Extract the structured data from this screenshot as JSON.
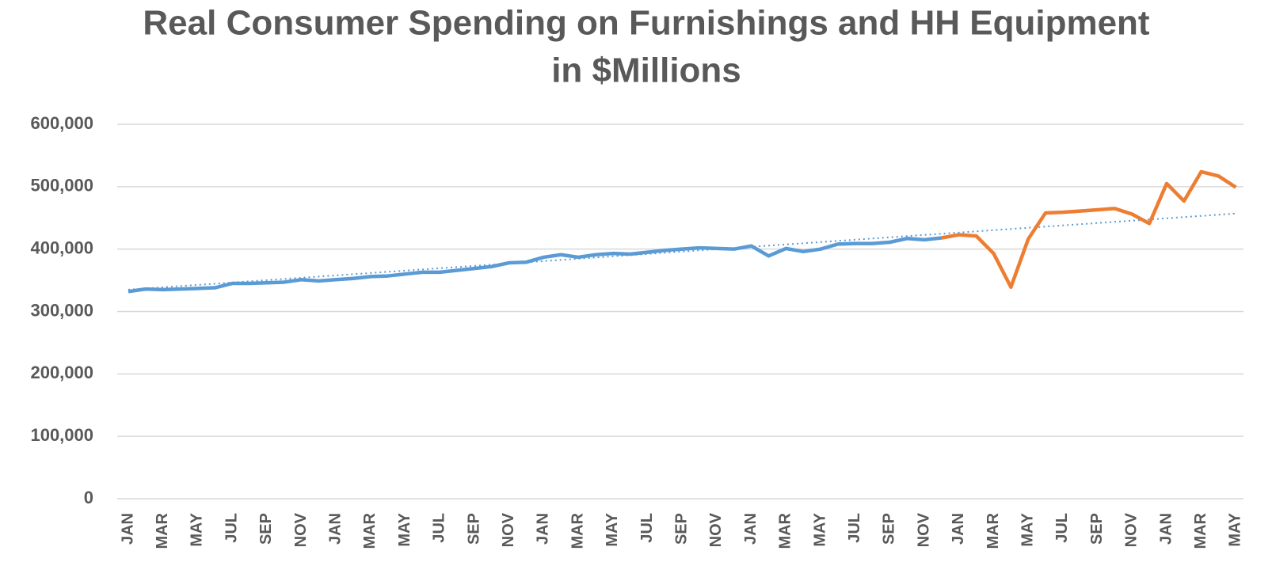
{
  "chart_data": {
    "type": "line",
    "title": [
      "Real Consumer Spending on Furnishings and HH Equipment",
      "in $Millions"
    ],
    "categories": [
      "JAN",
      null,
      "MAR",
      null,
      "MAY",
      null,
      "JUL",
      null,
      "SEP",
      null,
      "NOV",
      null,
      "JAN",
      null,
      "MAR",
      null,
      "MAY",
      null,
      "JUL",
      null,
      "SEP",
      null,
      "NOV",
      null,
      "JAN",
      null,
      "MAR",
      null,
      "MAY",
      null,
      "JUL",
      null,
      "SEP",
      null,
      "NOV",
      null,
      "JAN",
      null,
      "MAR",
      null,
      "MAY",
      null,
      "JUL",
      null,
      "SEP",
      null,
      "NOV",
      null,
      "JAN",
      null,
      "MAR",
      null,
      "MAY",
      null,
      "JUL",
      null,
      "SEP",
      null,
      "NOV",
      null,
      "JAN",
      null,
      "MAR",
      null,
      "MAY"
    ],
    "series": [
      {
        "color": "#5b9bd5",
        "values": [
          332000,
          336000,
          335000,
          336000,
          337000,
          338000,
          345000,
          345000,
          346000,
          347000,
          351000,
          349000,
          351000,
          353000,
          356000,
          357000,
          360000,
          363000,
          363000,
          366000,
          369000,
          372000,
          378000,
          379000,
          387000,
          391000,
          387000,
          391000,
          393000,
          392000,
          395000,
          398000,
          400000,
          402000,
          401000,
          400000,
          405000,
          389000,
          401000,
          396000,
          400000,
          408000,
          409000,
          409000,
          411000,
          417000,
          415000,
          418000,
          null,
          null,
          null,
          null,
          null,
          null,
          null,
          null,
          null,
          null,
          null,
          null,
          null,
          null,
          null,
          null,
          null
        ]
      },
      {
        "color": "#ed7d31",
        "values": [
          null,
          null,
          null,
          null,
          null,
          null,
          null,
          null,
          null,
          null,
          null,
          null,
          null,
          null,
          null,
          null,
          null,
          null,
          null,
          null,
          null,
          null,
          null,
          null,
          null,
          null,
          null,
          null,
          null,
          null,
          null,
          null,
          null,
          null,
          null,
          null,
          null,
          null,
          null,
          null,
          null,
          null,
          null,
          null,
          null,
          null,
          null,
          418000,
          423000,
          421000,
          393000,
          339000,
          416000,
          458000,
          459000,
          461000,
          463000,
          465000,
          456000,
          441000,
          505000,
          477000,
          524000,
          517000,
          499000
        ]
      }
    ],
    "trendline": {
      "color": "#5b9bd5",
      "style": "dotted",
      "from": {
        "index": 0,
        "value": 335000
      },
      "to": {
        "index": 64,
        "value": 457000
      }
    },
    "ylim": [
      0,
      600000
    ],
    "yticks": [
      0,
      {
        "value": 100000,
        "label": "100,000"
      },
      {
        "value": 200000,
        "label": "200,000"
      },
      {
        "value": 300000,
        "label": "300,000"
      },
      {
        "value": 400000,
        "label": "400,000"
      },
      {
        "value": 500000,
        "label": "500,000"
      },
      {
        "value": 600000,
        "label": "600,000"
      }
    ],
    "grid": true
  }
}
